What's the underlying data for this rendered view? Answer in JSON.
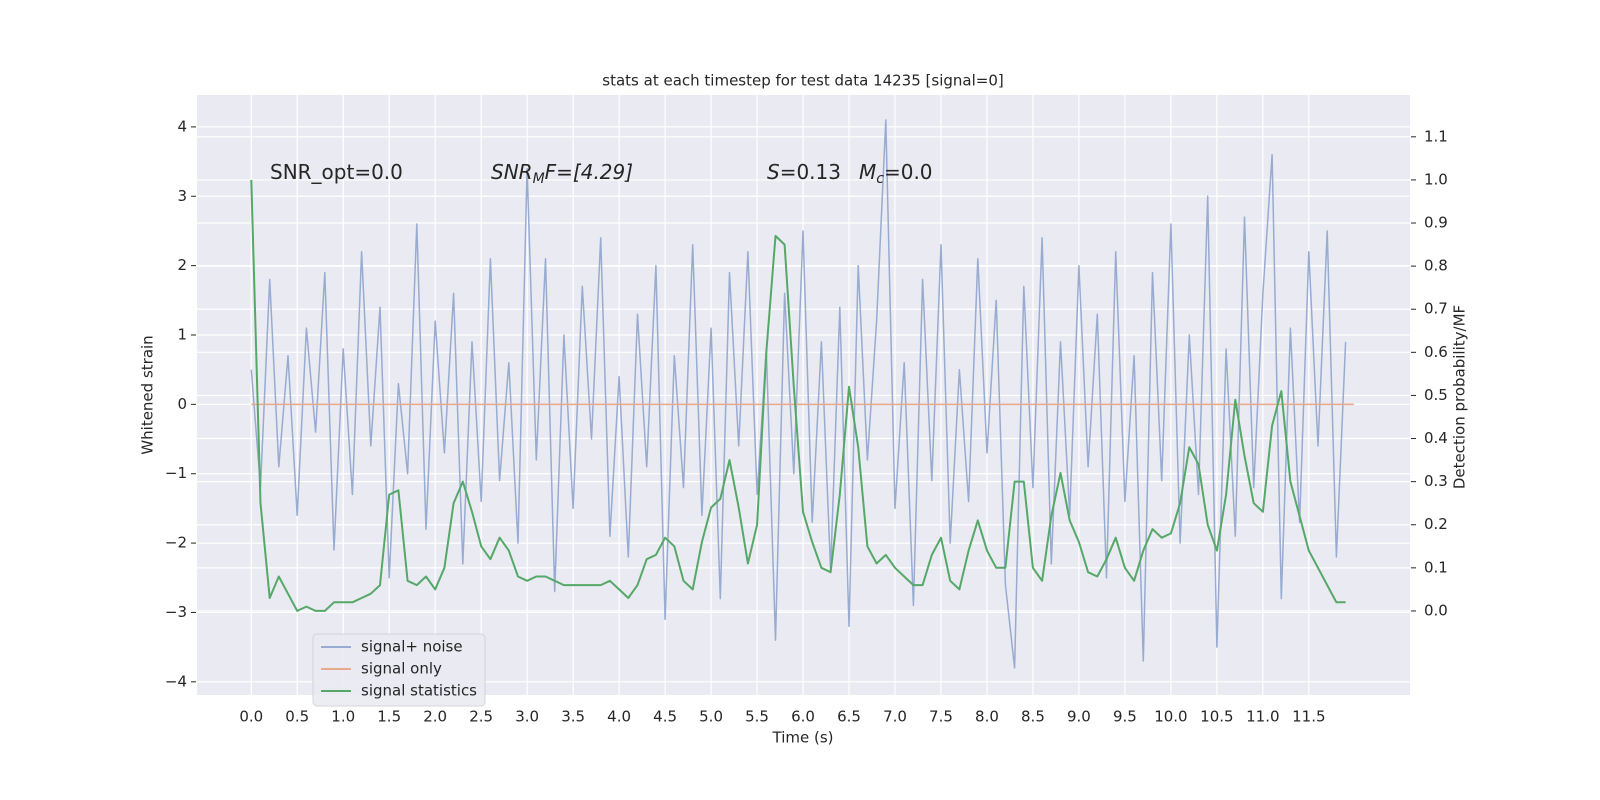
{
  "chart_data": {
    "type": "line",
    "title": "stats at each timestep for test data 14235 [signal=0]",
    "xlabel": "Time (s)",
    "ylabel": "Whitened strain",
    "y2label": "Detection probability/MF",
    "annotations": [
      [
        "SNR_opt=0.0"
      ],
      [
        "SNR",
        "M",
        "F=[4.29]"
      ],
      [
        "S",
        "=0.13"
      ],
      [
        "M",
        "c",
        "=0.0"
      ]
    ],
    "xlim": [
      -0.59,
      12.6
    ],
    "ylim": [
      -4.19,
      4.46
    ],
    "y2lim": [
      -0.195,
      1.197
    ],
    "xticks": [
      {
        "value": 0,
        "label": "0.0"
      },
      {
        "value": 0.5,
        "label": "0.5"
      },
      {
        "value": 1,
        "label": "1.0"
      },
      {
        "value": 1.5,
        "label": "1.5"
      },
      {
        "value": 2,
        "label": "2.0"
      },
      {
        "value": 2.5,
        "label": "2.5"
      },
      {
        "value": 3,
        "label": "3.0"
      },
      {
        "value": 3.5,
        "label": "3.5"
      },
      {
        "value": 4,
        "label": "4.0"
      },
      {
        "value": 4.5,
        "label": "4.5"
      },
      {
        "value": 5,
        "label": "5.0"
      },
      {
        "value": 5.5,
        "label": "5.5"
      },
      {
        "value": 6,
        "label": "6.0"
      },
      {
        "value": 6.5,
        "label": "6.5"
      },
      {
        "value": 7,
        "label": "7.0"
      },
      {
        "value": 7.5,
        "label": "7.5"
      },
      {
        "value": 8,
        "label": "8.0"
      },
      {
        "value": 8.5,
        "label": "8.5"
      },
      {
        "value": 9,
        "label": "9.0"
      },
      {
        "value": 9.5,
        "label": "9.5"
      },
      {
        "value": 10,
        "label": "10.0"
      },
      {
        "value": 10.5,
        "label": "10.5"
      },
      {
        "value": 11,
        "label": "11.0"
      },
      {
        "value": 11.5,
        "label": "11.5"
      }
    ],
    "yticks": [
      {
        "value": -4,
        "label": "−4"
      },
      {
        "value": -3,
        "label": "−3"
      },
      {
        "value": -2,
        "label": "−2"
      },
      {
        "value": -1,
        "label": "−1"
      },
      0,
      1,
      2,
      3,
      4
    ],
    "y2ticks": [
      {
        "value": 0,
        "label": "0.0"
      },
      {
        "value": 0.1,
        "label": "0.1"
      },
      {
        "value": 0.2,
        "label": "0.2"
      },
      {
        "value": 0.3,
        "label": "0.3"
      },
      {
        "value": 0.4,
        "label": "0.4"
      },
      {
        "value": 0.5,
        "label": "0.5"
      },
      {
        "value": 0.6,
        "label": "0.6"
      },
      {
        "value": 0.7,
        "label": "0.7"
      },
      {
        "value": 0.8,
        "label": "0.8"
      },
      {
        "value": 0.9,
        "label": "0.9"
      },
      {
        "value": 1,
        "label": "1.0"
      },
      {
        "value": 1.1,
        "label": "1.1"
      }
    ],
    "grid": true,
    "legend": "lower left",
    "x": [
      0,
      0.1,
      0.2,
      0.3,
      0.4,
      0.5,
      0.6,
      0.7,
      0.8,
      0.9,
      1,
      1.1,
      1.2,
      1.3,
      1.4,
      1.5,
      1.6,
      1.7,
      1.8,
      1.9,
      2,
      2.1,
      2.2,
      2.3,
      2.4,
      2.5,
      2.6,
      2.7,
      2.8,
      2.9,
      3,
      3.1,
      3.2,
      3.3,
      3.4,
      3.5,
      3.6,
      3.7,
      3.8,
      3.9,
      4,
      4.1,
      4.2,
      4.3,
      4.4,
      4.5,
      4.6,
      4.7,
      4.8,
      4.9,
      5,
      5.1,
      5.2,
      5.3,
      5.4,
      5.5,
      5.6,
      5.7,
      5.8,
      5.9,
      6,
      6.1,
      6.2,
      6.3,
      6.4,
      6.5,
      6.6,
      6.7,
      6.8,
      6.9,
      7,
      7.1,
      7.2,
      7.3,
      7.4,
      7.5,
      7.6,
      7.7,
      7.8,
      7.9,
      8,
      8.1,
      8.2,
      8.3,
      8.4,
      8.5,
      8.6,
      8.7,
      8.8,
      8.9,
      9,
      9.1,
      9.2,
      9.3,
      9.4,
      9.5,
      9.6,
      9.7,
      9.8,
      9.9,
      10,
      10.1,
      10.2,
      10.3,
      10.4,
      10.5,
      10.6,
      10.7,
      10.8,
      10.9,
      11,
      11.1,
      11.2,
      11.3,
      11.4,
      11.5,
      11.6,
      11.7,
      11.8,
      11.9
    ],
    "series": [
      {
        "name": "signal+ noise",
        "color": "#98abd1",
        "values": [
          0.5,
          -1.2,
          1.8,
          -0.9,
          0.7,
          -1.6,
          1.1,
          -0.4,
          1.9,
          -2.1,
          0.8,
          -1.3,
          2.2,
          -0.6,
          1.4,
          -2.5,
          0.3,
          -1.0,
          2.6,
          -1.8,
          1.2,
          -0.7,
          1.6,
          -2.3,
          0.9,
          -1.4,
          2.1,
          -1.1,
          0.6,
          -2.0,
          3.4,
          -0.8,
          2.1,
          -2.7,
          1.0,
          -1.5,
          1.7,
          -0.5,
          2.4,
          -1.9,
          0.4,
          -2.2,
          1.3,
          -0.9,
          2.0,
          -3.1,
          0.7,
          -1.2,
          2.3,
          -1.6,
          1.1,
          -2.8,
          1.9,
          -0.6,
          2.2,
          -1.3,
          0.8,
          -3.4,
          1.6,
          -1.0,
          2.5,
          -1.7,
          0.9,
          -2.4,
          1.4,
          -3.2,
          2.0,
          -0.8,
          1.2,
          4.1,
          -1.5,
          0.6,
          -2.9,
          1.8,
          -1.1,
          2.3,
          -2.0,
          0.5,
          -1.4,
          2.1,
          -0.7,
          1.5,
          -2.6,
          -3.8,
          1.7,
          -1.2,
          2.4,
          -2.3,
          0.9,
          -1.6,
          2.0,
          -0.9,
          1.3,
          -2.5,
          2.2,
          -1.4,
          0.7,
          -3.7,
          1.9,
          -1.1,
          2.6,
          -2.0,
          1.0,
          -1.3,
          3.0,
          -3.5,
          0.8,
          -1.9,
          2.7,
          -1.2,
          1.6,
          3.6,
          -2.8,
          1.1,
          -1.7,
          2.2,
          -0.6,
          2.5,
          -2.2,
          0.9
        ]
      },
      {
        "name": "signal only",
        "color": "#e8a88a",
        "x": [
          0,
          11.99
        ],
        "values": [
          0,
          0
        ]
      },
      {
        "name": "signal statistics",
        "color": "#55a868",
        "axis": "y2",
        "values": [
          1.0,
          0.25,
          0.03,
          0.08,
          0.04,
          0.0,
          0.01,
          0.0,
          0.0,
          0.02,
          0.02,
          0.02,
          0.03,
          0.04,
          0.06,
          0.27,
          0.28,
          0.07,
          0.06,
          0.08,
          0.05,
          0.1,
          0.25,
          0.3,
          0.23,
          0.15,
          0.12,
          0.17,
          0.14,
          0.08,
          0.07,
          0.08,
          0.08,
          0.07,
          0.06,
          0.06,
          0.06,
          0.06,
          0.06,
          0.07,
          0.05,
          0.03,
          0.06,
          0.12,
          0.13,
          0.17,
          0.15,
          0.07,
          0.05,
          0.16,
          0.24,
          0.26,
          0.35,
          0.24,
          0.11,
          0.2,
          0.6,
          0.87,
          0.85,
          0.52,
          0.23,
          0.16,
          0.1,
          0.09,
          0.27,
          0.52,
          0.38,
          0.15,
          0.11,
          0.13,
          0.1,
          0.08,
          0.06,
          0.06,
          0.13,
          0.17,
          0.07,
          0.05,
          0.14,
          0.21,
          0.14,
          0.1,
          0.1,
          0.3,
          0.3,
          0.1,
          0.07,
          0.22,
          0.32,
          0.21,
          0.16,
          0.09,
          0.08,
          0.12,
          0.17,
          0.1,
          0.07,
          0.14,
          0.19,
          0.17,
          0.18,
          0.25,
          0.38,
          0.34,
          0.2,
          0.14,
          0.27,
          0.49,
          0.36,
          0.25,
          0.23,
          0.43,
          0.51,
          0.3,
          0.22,
          0.14,
          0.1,
          0.06,
          0.02,
          0.02
        ]
      }
    ]
  }
}
